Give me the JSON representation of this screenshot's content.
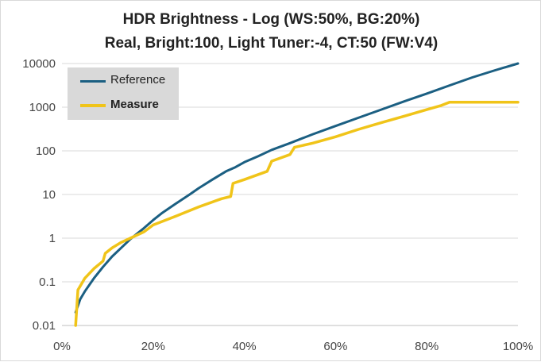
{
  "chart_data": {
    "type": "line",
    "title": "HDR Brightness - Log (WS:50%, BG:20%)",
    "subtitle": "Real, Bright:100, Light Tuner:-4, CT:50 (FW:V4)",
    "y_scale": "log",
    "ylim": [
      0.01,
      10000
    ],
    "xlim": [
      0,
      100
    ],
    "y_ticks": [
      "0.01",
      "0.1",
      "1",
      "10",
      "100",
      "1000",
      "10000"
    ],
    "x_ticks": [
      "0%",
      "20%",
      "40%",
      "60%",
      "80%",
      "100%"
    ],
    "grid": "horizontal",
    "legend_position": "top-left",
    "series": [
      {
        "name": "Reference",
        "color": "#1b5f82",
        "x": [
          3,
          4,
          5,
          7,
          9,
          11,
          13,
          15,
          18,
          20,
          22,
          25,
          28,
          30,
          33,
          36,
          38,
          40,
          43,
          46,
          50,
          55,
          60,
          65,
          70,
          75,
          80,
          85,
          90,
          95,
          100
        ],
        "y": [
          0.02,
          0.04,
          0.06,
          0.12,
          0.22,
          0.38,
          0.6,
          0.95,
          1.7,
          2.6,
          3.8,
          6.2,
          10,
          14,
          22,
          34,
          42,
          55,
          75,
          105,
          150,
          240,
          370,
          570,
          880,
          1350,
          2050,
          3150,
          4800,
          7000,
          10000
        ]
      },
      {
        "name": "Measure",
        "color": "#f0c419",
        "x": [
          3,
          3.5,
          5,
          7,
          9,
          9.5,
          11,
          13,
          15,
          18,
          20,
          25,
          30,
          35,
          37,
          37.5,
          40,
          45,
          46,
          50,
          51,
          55,
          60,
          65,
          70,
          75,
          80,
          83,
          85,
          90,
          95,
          100
        ],
        "y": [
          0.01,
          0.065,
          0.12,
          0.2,
          0.3,
          0.45,
          0.6,
          0.8,
          1.0,
          1.4,
          2.0,
          3.2,
          5.2,
          8,
          9,
          18,
          22,
          34,
          58,
          82,
          120,
          150,
          210,
          310,
          440,
          620,
          880,
          1080,
          1300,
          1300,
          1300,
          1300
        ]
      }
    ]
  }
}
